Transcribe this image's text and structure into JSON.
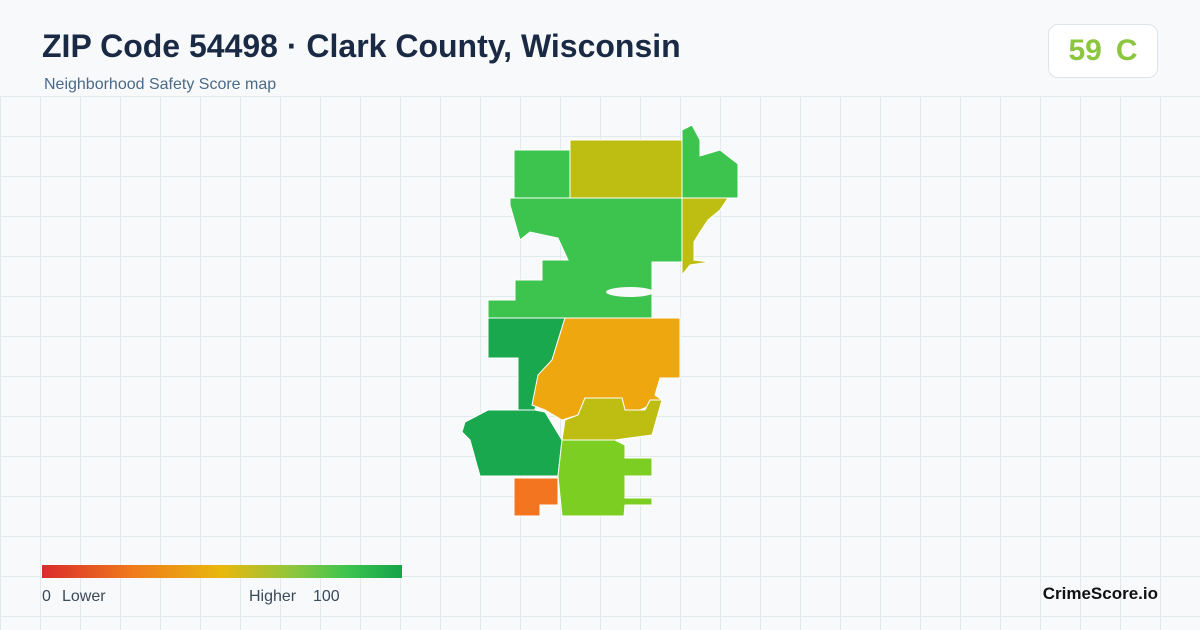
{
  "header": {
    "title": "ZIP Code 54498 · Clark County, Wisconsin",
    "subtitle": "Neighborhood Safety Score map"
  },
  "score": {
    "value": 59,
    "grade": "C"
  },
  "legend": {
    "min": 0,
    "min_label": "Lower",
    "max_label": "Higher",
    "max": 100
  },
  "brand": "CrimeScore.io"
}
